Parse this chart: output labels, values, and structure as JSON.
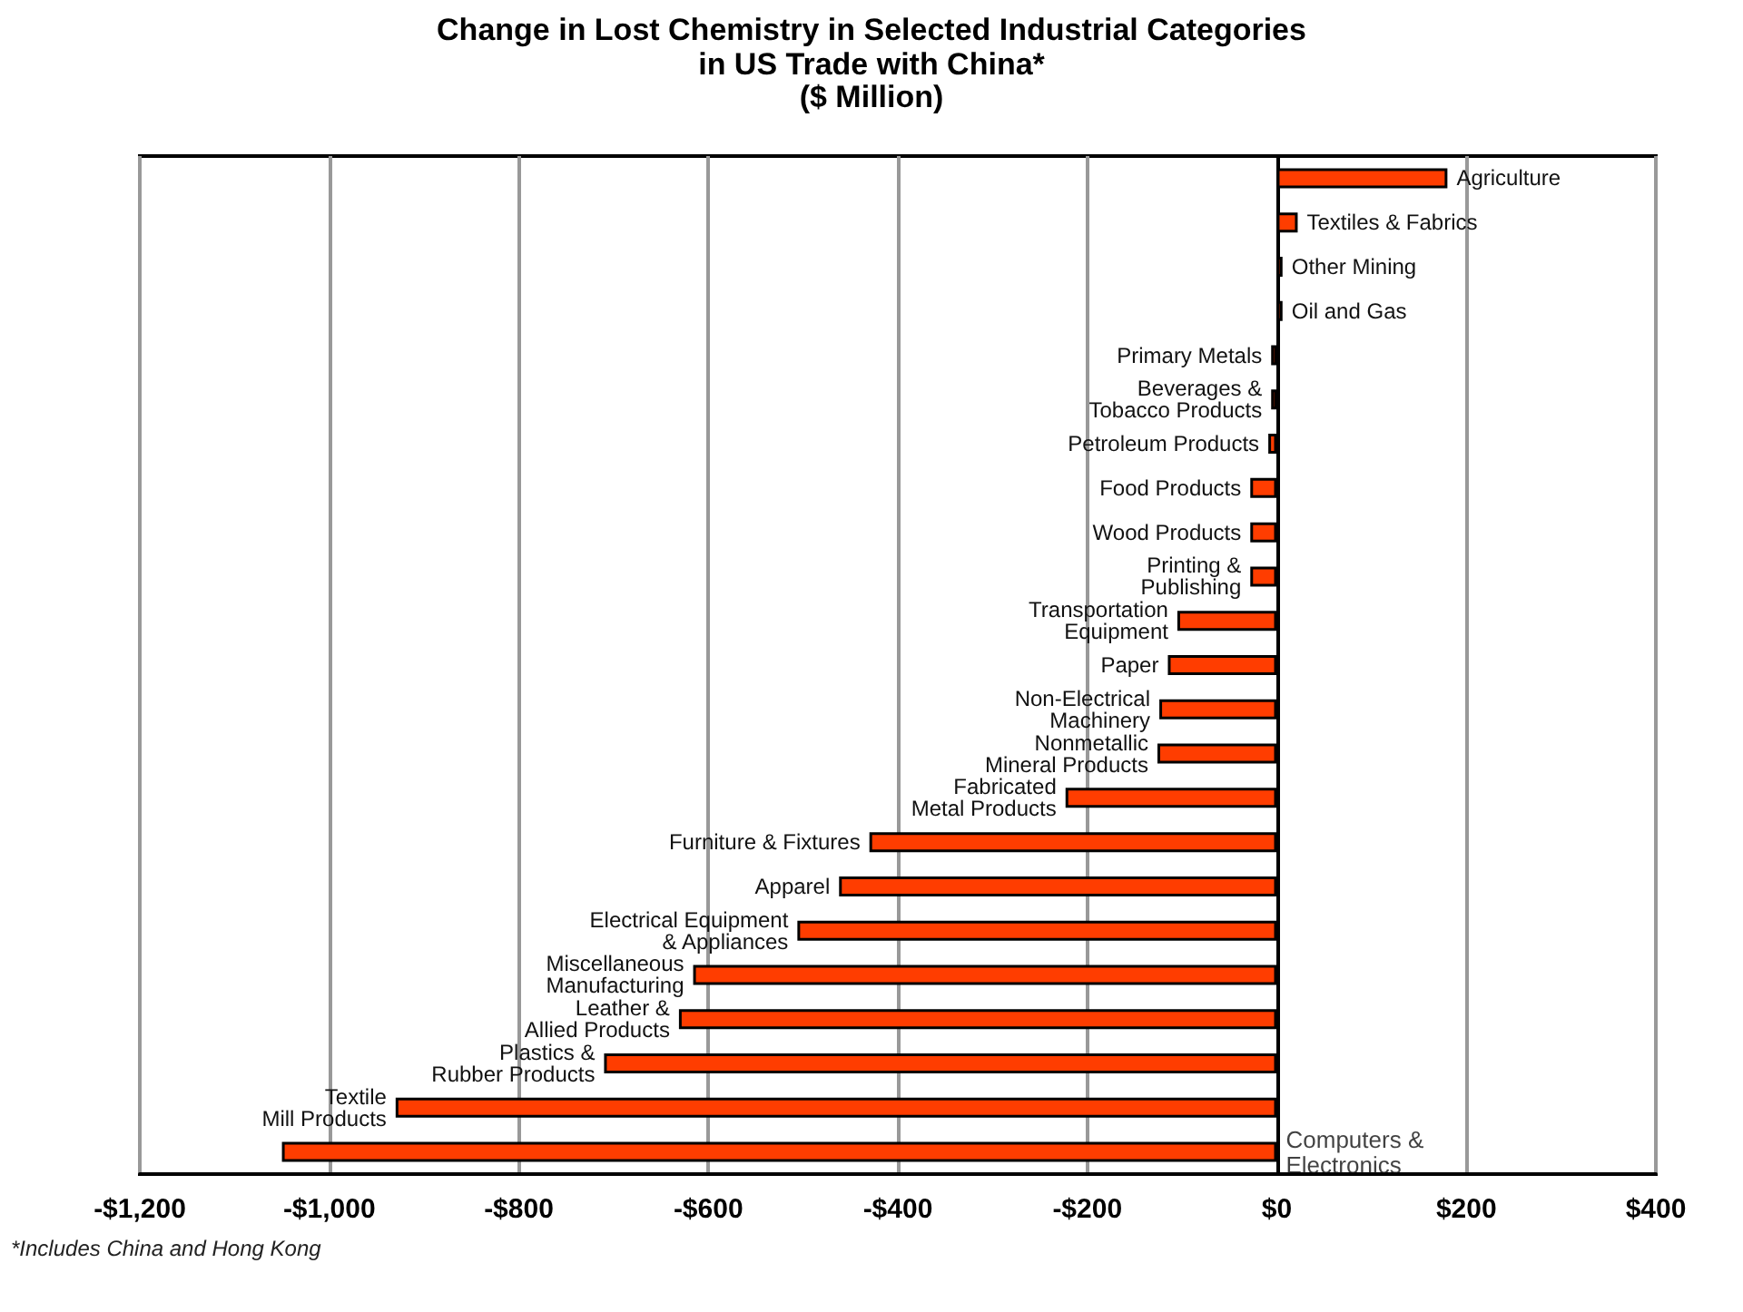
{
  "chart_data": {
    "type": "bar",
    "orientation": "horizontal",
    "title": "Change in Lost Chemistry in Selected Industrial Categories\nin US Trade with China*",
    "subtitle": "($ Million)",
    "categories": [
      "Agriculture",
      "Textiles & Fabrics",
      "Other Mining",
      "Oil and Gas",
      "Primary Metals",
      "Beverages & Tobacco Products",
      "Petroleum Products",
      "Food Products",
      "Wood Products",
      "Printing & Publishing",
      "Transportation Equipment",
      "Paper",
      "Non-Electrical Machinery",
      "Nonmetallic Mineral Products",
      "Fabricated Metal Products",
      "Furniture & Fixtures",
      "Apparel",
      "Electrical Equipment & Appliances",
      "Miscellaneous Manufacturing",
      "Leather & Allied Products",
      "Plastics & Rubber Products",
      "Textile Mill Products",
      "Computers & Electronics"
    ],
    "values": [
      180,
      22,
      6,
      6,
      -6,
      -6,
      -9,
      -28,
      -28,
      -28,
      -105,
      -115,
      -124,
      -126,
      -223,
      -430,
      -462,
      -506,
      -616,
      -631,
      -710,
      -930,
      -1050
    ],
    "color": "#ff3d00",
    "xlim": [
      -1200,
      400
    ],
    "xticks": [
      {
        "value": -1200,
        "label": "-$1,200"
      },
      {
        "value": -1000,
        "label": "-$1,000"
      },
      {
        "value": -800,
        "label": "-$800"
      },
      {
        "value": -600,
        "label": "-$600"
      },
      {
        "value": -400,
        "label": "-$400"
      },
      {
        "value": -200,
        "label": "-$200"
      },
      {
        "value": 0,
        "label": "$0"
      },
      {
        "value": 200,
        "label": "$200"
      },
      {
        "value": 400,
        "label": "$400"
      }
    ],
    "grid": "x",
    "tick_labels": "x",
    "annotations": [
      "*Includes China and Hong Kong"
    ]
  }
}
